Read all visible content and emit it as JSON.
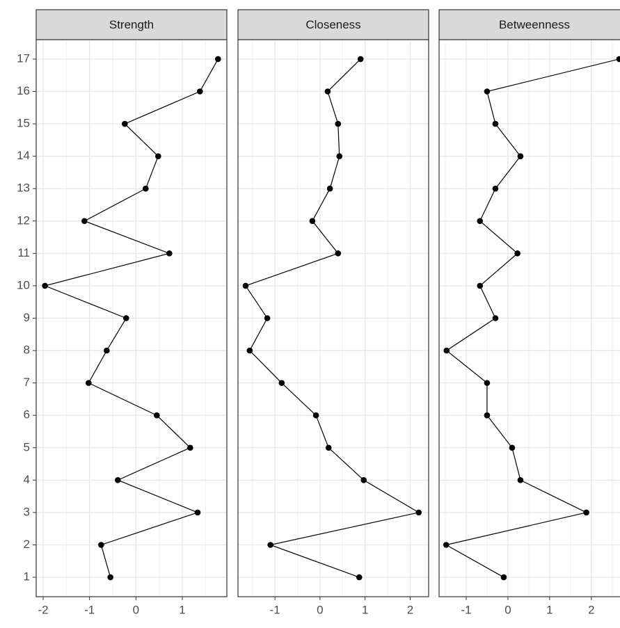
{
  "chart_data": [
    {
      "type": "line",
      "title": "Strength",
      "color": "#000000",
      "grid": true,
      "categories": [
        "1",
        "2",
        "3",
        "4",
        "5",
        "6",
        "7",
        "8",
        "9",
        "10",
        "11",
        "12",
        "13",
        "14",
        "15",
        "16",
        "17"
      ],
      "values": [
        -0.55,
        -0.75,
        1.33,
        -0.39,
        1.17,
        0.45,
        -1.02,
        -0.63,
        -0.21,
        -1.96,
        0.72,
        -1.11,
        0.21,
        0.48,
        -0.24,
        1.38,
        1.77
      ],
      "xlim": [
        -2.15,
        1.96
      ],
      "xticks": [
        -2,
        -1,
        0,
        1
      ]
    },
    {
      "type": "line",
      "title": "Closeness",
      "color": "#000000",
      "grid": true,
      "categories": [
        "1",
        "2",
        "3",
        "4",
        "5",
        "6",
        "7",
        "8",
        "9",
        "10",
        "11",
        "12",
        "13",
        "14",
        "15",
        "16",
        "17"
      ],
      "values": [
        0.87,
        -1.1,
        2.19,
        0.97,
        0.19,
        -0.09,
        -0.85,
        -1.56,
        -1.17,
        -1.65,
        0.4,
        -0.17,
        0.22,
        0.43,
        0.4,
        0.17,
        0.9
      ],
      "xlim": [
        -1.82,
        2.41
      ],
      "xticks": [
        -1,
        0,
        1,
        2
      ]
    },
    {
      "type": "line",
      "title": "Betweenness",
      "color": "#000000",
      "grid": true,
      "categories": [
        "1",
        "2",
        "3",
        "4",
        "5",
        "6",
        "7",
        "8",
        "9",
        "10",
        "11",
        "12",
        "13",
        "14",
        "15",
        "16",
        "17"
      ],
      "values": [
        -0.1,
        -1.48,
        1.88,
        0.3,
        0.1,
        -0.5,
        -0.5,
        -1.47,
        -0.3,
        -0.67,
        0.23,
        -0.67,
        -0.3,
        0.3,
        -0.3,
        -0.5,
        2.67
      ],
      "xlim": [
        -1.65,
        2.92
      ],
      "xticks": [
        -1,
        0,
        1,
        2
      ]
    }
  ]
}
